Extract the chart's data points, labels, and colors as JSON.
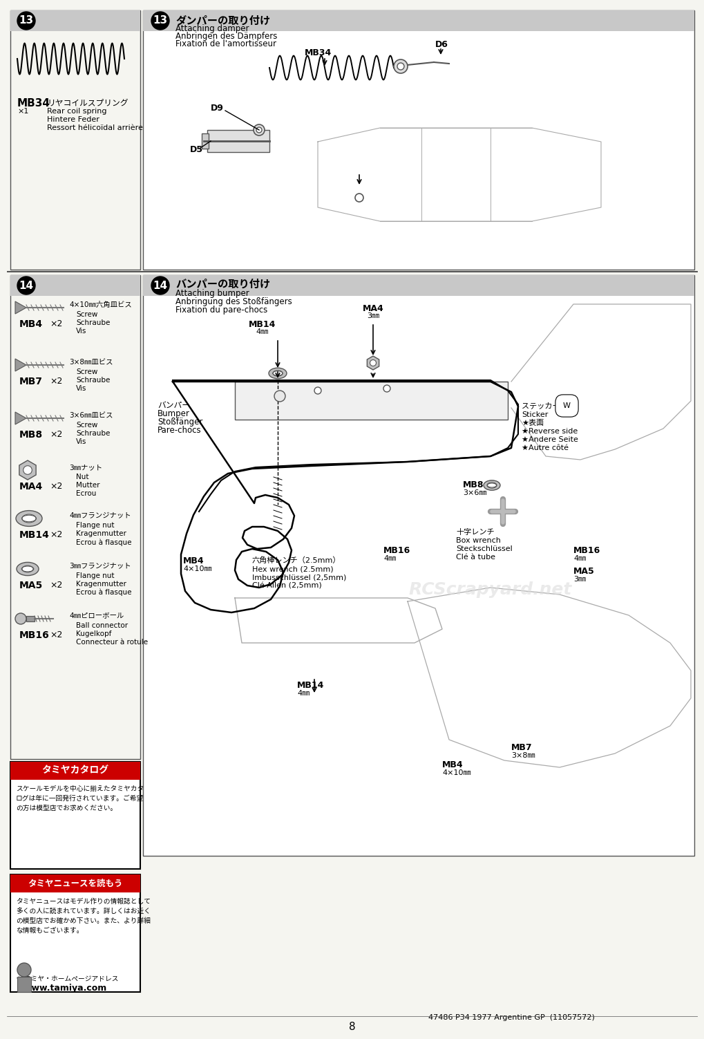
{
  "page_num": "8",
  "bg_color": "#f5f5f0",
  "section13_title_ja": "ダンパーの取り付け",
  "section13_title_en": "Attaching damper",
  "section13_title_de": "Anbringen des Dämpfers",
  "section13_title_fr": "Fixation de l'amortisseur",
  "section14_title_ja": "バンパーの取り付け",
  "section14_title_en": "Attaching bumper",
  "section14_title_de": "Anbringung des Stoßfängers",
  "section14_title_fr": "Fixation du pare-chocs",
  "mb34_name_en": "Rear coil spring",
  "mb34_name_de": "Hintere Feder",
  "mb34_name_fr": "Ressort hélicoïdal arrière",
  "parts14": [
    {
      "code": "MB4",
      "qty": "×2",
      "size": "4×10㎜六角皿ビス",
      "en": "Screw",
      "de": "Schraube",
      "fr": "Vis"
    },
    {
      "code": "MB7",
      "qty": "×2",
      "size": "3×8㎜皿ビス",
      "en": "Screw",
      "de": "Schraube",
      "fr": "Vis"
    },
    {
      "code": "MB8",
      "qty": "×2",
      "size": "3×6㎜皿ビス",
      "en": "Screw",
      "de": "Schraube",
      "fr": "Vis"
    },
    {
      "code": "MA4",
      "qty": "×2",
      "size": "3㎜ナット",
      "en": "Nut",
      "de": "Mutter",
      "fr": "Ecrou"
    },
    {
      "code": "MB14",
      "qty": "×2",
      "size": "4㎜フランジナット",
      "en": "Flange nut",
      "de": "Kragenmutter",
      "fr": "Ecrou à flasque"
    },
    {
      "code": "MA5",
      "qty": "×2",
      "size": "3㎜フランジナット",
      "en": "Flange nut",
      "de": "Kragenmutter",
      "fr": "Ecrou à flasque"
    },
    {
      "code": "MB16",
      "qty": "×2",
      "size": "4㎜ピローボール",
      "en": "Ball connector",
      "de": "Kugelkopf",
      "fr": "Connecteur à rotule"
    }
  ],
  "footer_catalog_title": "タミヤカタログ",
  "footer_catalog_body": "スケールモデルを中心に揃えたタミヤカタ\nログは年に一回発行されています。ご希望\nの方は模型店でお求めください。",
  "footer_news_title": "タミヤニュースを読もう",
  "footer_news_body": "タミヤニュースはモデル作りの情報誌として\n多くの人に読まれています。詳しくはお近く\nの模型店でお確かめ下さい。また、より詳細\nな情報もございます。",
  "footer_url": "www.tamiya.com",
  "bottom_code": "47486 P34 1977 Argentine GP  (11057572)",
  "header_gray_color": "#c8c8c8",
  "line_color": "#555555",
  "part_line_color": "#888888"
}
